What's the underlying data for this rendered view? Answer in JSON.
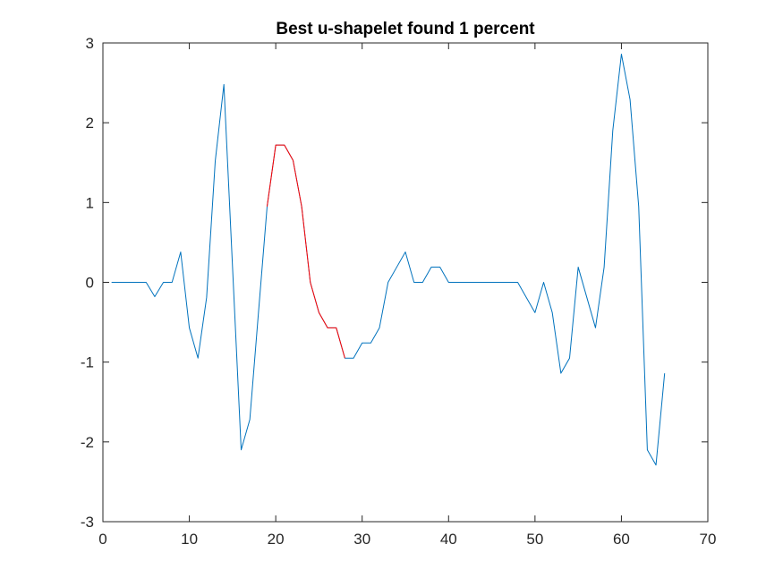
{
  "chart_data": {
    "type": "line",
    "title": "Best u-shapelet found 1 percent",
    "xlabel": "",
    "ylabel": "",
    "xlim": [
      0,
      70
    ],
    "ylim": [
      -3,
      3
    ],
    "xticks": [
      0,
      10,
      20,
      30,
      40,
      50,
      60,
      70
    ],
    "yticks": [
      -3,
      -2,
      -1,
      0,
      1,
      2,
      3
    ],
    "grid": false,
    "box": true,
    "series": [
      {
        "color": "#0072BD",
        "x": [
          1,
          2,
          3,
          4,
          5,
          6,
          7,
          8,
          9,
          10,
          11,
          12,
          13,
          14,
          15,
          16,
          17,
          18,
          19,
          20,
          21,
          22,
          23,
          24,
          25,
          26,
          27,
          28,
          29,
          30,
          31,
          32,
          33,
          34,
          35,
          36,
          37,
          38,
          39,
          40,
          41,
          42,
          43,
          44,
          45,
          46,
          47,
          48,
          49,
          50,
          51,
          52,
          53,
          54,
          55,
          56,
          57,
          58,
          59,
          60,
          61,
          62,
          63,
          64,
          65
        ],
        "y": [
          0,
          0,
          0,
          0,
          0,
          -0.18,
          0,
          0,
          0.38,
          -0.57,
          -0.95,
          -0.19,
          1.52,
          2.48,
          0.19,
          -2.1,
          -1.72,
          -0.38,
          0.95,
          1.72,
          1.72,
          1.53,
          0.95,
          0,
          -0.38,
          -0.57,
          -0.57,
          -0.95,
          -0.95,
          -0.76,
          -0.76,
          -0.57,
          0,
          0.19,
          0.38,
          0,
          0,
          0.19,
          0.19,
          0,
          0,
          0,
          0,
          0,
          0,
          0,
          0,
          0,
          -0.19,
          -0.38,
          0,
          -0.38,
          -1.14,
          -0.95,
          0.19,
          -0.19,
          -0.57,
          0.19,
          1.9,
          2.86,
          2.29,
          0.95,
          -2.1,
          -2.29,
          -1.14
        ]
      },
      {
        "color": "#FF0000",
        "x": [
          19,
          20,
          21,
          22,
          23,
          24,
          25,
          26,
          27,
          28
        ],
        "y": [
          0.95,
          1.72,
          1.72,
          1.53,
          0.95,
          0,
          -0.38,
          -0.57,
          -0.57,
          -0.95
        ]
      }
    ]
  }
}
